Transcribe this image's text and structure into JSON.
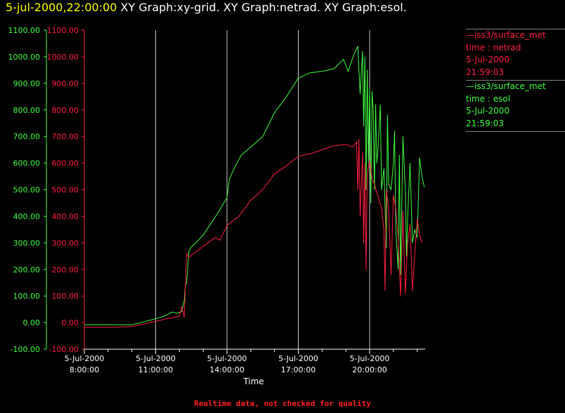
{
  "header": {
    "timestamp": "5-jul-2000,22:00:00",
    "graph_titles": "XY Graph:xy-grid.  XY Graph:netrad.  XY Graph:esol."
  },
  "legend": [
    {
      "source": "—iss3/surface_met",
      "label": "time : netrad",
      "date": "5-Jul-2000",
      "time": "21:59:03",
      "color": "#ff2040"
    },
    {
      "source": "—iss3/surface_met",
      "label": "time : esol",
      "date": "5-Jul-2000",
      "time": "21:59:03",
      "color": "#40ff40"
    }
  ],
  "footer": {
    "note": "Realtime data, not checked for quality"
  },
  "chart_data": {
    "type": "line",
    "xlabel": "Time",
    "x_ticks": [
      {
        "date": "5-Jul-2000",
        "time": "8:00:00",
        "hours": 8
      },
      {
        "date": "5-Jul-2000",
        "time": "11:00:00",
        "hours": 11
      },
      {
        "date": "5-Jul-2000",
        "time": "14:00:00",
        "hours": 14
      },
      {
        "date": "5-Jul-2000",
        "time": "17:00:00",
        "hours": 17
      },
      {
        "date": "5-Jul-2000",
        "time": "20:00:00",
        "hours": 20
      }
    ],
    "xlim_hours": [
      8,
      22.2
    ],
    "ylim": [
      -100,
      1100
    ],
    "y_ticks": [
      "-100.00",
      "0.00",
      "100.00",
      "200.00",
      "300.00",
      "400.00",
      "500.00",
      "600.00",
      "700.00",
      "800.00",
      "900.00",
      "1000.00",
      "1100.00"
    ],
    "grid": "vertical lines at x ticks",
    "series": [
      {
        "name": "time : esol",
        "color": "#40ff40",
        "points": [
          [
            8.0,
            -8
          ],
          [
            9.0,
            -8
          ],
          [
            10.0,
            -8
          ],
          [
            10.3,
            -2
          ],
          [
            10.8,
            10
          ],
          [
            11.3,
            22
          ],
          [
            11.5,
            30
          ],
          [
            11.7,
            40
          ],
          [
            11.9,
            35
          ],
          [
            12.1,
            42
          ],
          [
            12.2,
            80
          ],
          [
            12.25,
            140
          ],
          [
            12.3,
            150
          ],
          [
            12.4,
            270
          ],
          [
            12.5,
            285
          ],
          [
            12.7,
            300
          ],
          [
            13.0,
            330
          ],
          [
            13.3,
            370
          ],
          [
            13.6,
            410
          ],
          [
            13.8,
            440
          ],
          [
            14.0,
            470
          ],
          [
            14.1,
            540
          ],
          [
            14.3,
            580
          ],
          [
            14.6,
            630
          ],
          [
            15.0,
            660
          ],
          [
            15.5,
            700
          ],
          [
            16.0,
            790
          ],
          [
            16.5,
            850
          ],
          [
            17.0,
            920
          ],
          [
            17.5,
            940
          ],
          [
            18.0,
            945
          ],
          [
            18.5,
            955
          ],
          [
            18.9,
            990
          ],
          [
            19.1,
            945
          ],
          [
            19.3,
            1000
          ],
          [
            19.5,
            1040
          ],
          [
            19.6,
            860
          ],
          [
            19.7,
            1020
          ],
          [
            19.75,
            740
          ],
          [
            19.8,
            1000
          ],
          [
            19.85,
            500
          ],
          [
            19.9,
            950
          ],
          [
            19.95,
            600
          ],
          [
            20.0,
            880
          ],
          [
            20.05,
            450
          ],
          [
            20.1,
            870
          ],
          [
            20.15,
            800
          ],
          [
            20.2,
            500
          ],
          [
            20.25,
            820
          ],
          [
            20.3,
            600
          ],
          [
            20.35,
            650
          ],
          [
            20.45,
            820
          ],
          [
            20.5,
            500
          ],
          [
            20.6,
            580
          ],
          [
            20.7,
            280
          ],
          [
            20.75,
            780
          ],
          [
            20.8,
            520
          ],
          [
            20.9,
            500
          ],
          [
            21.0,
            600
          ],
          [
            21.05,
            720
          ],
          [
            21.1,
            350
          ],
          [
            21.2,
            200
          ],
          [
            21.25,
            630
          ],
          [
            21.3,
            180
          ],
          [
            21.4,
            700
          ],
          [
            21.5,
            500
          ],
          [
            21.55,
            250
          ],
          [
            21.6,
            400
          ],
          [
            21.7,
            600
          ],
          [
            21.8,
            300
          ],
          [
            21.9,
            350
          ],
          [
            22.0,
            320
          ],
          [
            22.1,
            620
          ],
          [
            22.2,
            550
          ],
          [
            22.3,
            510
          ]
        ]
      },
      {
        "name": "time : netrad",
        "color": "#ff2040",
        "points": [
          [
            8.0,
            -18
          ],
          [
            9.0,
            -18
          ],
          [
            10.0,
            -15
          ],
          [
            10.5,
            -5
          ],
          [
            11.0,
            5
          ],
          [
            11.5,
            15
          ],
          [
            11.8,
            20
          ],
          [
            12.0,
            25
          ],
          [
            12.1,
            60
          ],
          [
            12.2,
            20
          ],
          [
            12.3,
            260
          ],
          [
            12.4,
            245
          ],
          [
            12.6,
            260
          ],
          [
            12.9,
            280
          ],
          [
            13.2,
            300
          ],
          [
            13.5,
            320
          ],
          [
            13.7,
            310
          ],
          [
            14.0,
            365
          ],
          [
            14.5,
            400
          ],
          [
            15.0,
            460
          ],
          [
            15.5,
            500
          ],
          [
            16.0,
            560
          ],
          [
            16.5,
            590
          ],
          [
            17.0,
            625
          ],
          [
            17.5,
            635
          ],
          [
            18.0,
            650
          ],
          [
            18.5,
            665
          ],
          [
            19.0,
            670
          ],
          [
            19.3,
            660
          ],
          [
            19.45,
            680
          ],
          [
            19.5,
            500
          ],
          [
            19.55,
            690
          ],
          [
            19.6,
            400
          ],
          [
            19.7,
            640
          ],
          [
            19.75,
            300
          ],
          [
            19.8,
            600
          ],
          [
            19.85,
            200
          ],
          [
            19.9,
            560
          ],
          [
            20.0,
            610
          ],
          [
            20.1,
            540
          ],
          [
            20.2,
            520
          ],
          [
            20.3,
            490
          ],
          [
            20.4,
            460
          ],
          [
            20.5,
            430
          ],
          [
            20.6,
            350
          ],
          [
            20.65,
            120
          ],
          [
            20.7,
            500
          ],
          [
            20.8,
            430
          ],
          [
            20.9,
            180
          ],
          [
            21.0,
            480
          ],
          [
            21.1,
            430
          ],
          [
            21.2,
            320
          ],
          [
            21.3,
            100
          ],
          [
            21.4,
            420
          ],
          [
            21.5,
            110
          ],
          [
            21.6,
            300
          ],
          [
            21.7,
            370
          ],
          [
            21.8,
            120
          ],
          [
            21.9,
            260
          ],
          [
            22.0,
            390
          ],
          [
            22.1,
            330
          ],
          [
            22.2,
            300
          ]
        ]
      }
    ]
  }
}
